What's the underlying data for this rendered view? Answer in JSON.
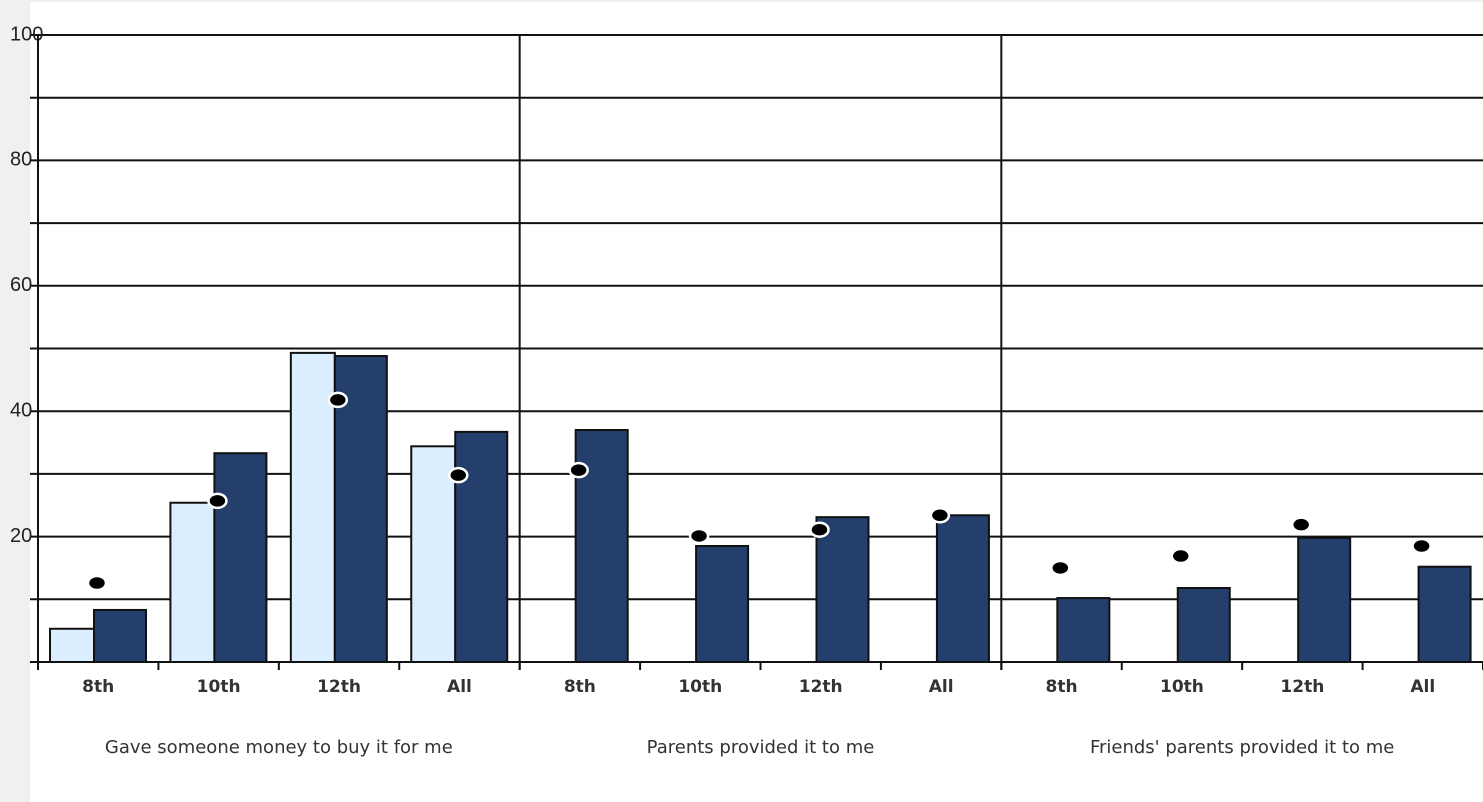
{
  "chart_data": {
    "type": "bar",
    "categories": [
      "8th",
      "10th",
      "12th",
      "All",
      "8th",
      "10th",
      "12th",
      "All",
      "8th",
      "10th",
      "12th",
      "All"
    ],
    "groups": [
      "Gave someone money to buy it for me",
      "Parents provided it to me",
      "Friends' parents provided it to me"
    ],
    "series": [
      {
        "color": "#dbeeff",
        "style": "bar",
        "values": [
          5.3,
          25.4,
          49.3,
          34.4,
          null,
          null,
          null,
          null,
          null,
          null,
          null,
          null
        ]
      },
      {
        "color": "#243f6b",
        "style": "bar",
        "values": [
          8.3,
          33.3,
          48.8,
          36.7,
          37.0,
          18.5,
          23.1,
          23.4,
          10.2,
          11.8,
          19.8,
          15.2
        ]
      },
      {
        "color": "#000000",
        "style": "dot",
        "values": [
          12.6,
          25.7,
          41.8,
          29.8,
          30.6,
          20.1,
          21.1,
          23.4,
          15.0,
          16.9,
          21.9,
          18.5
        ]
      }
    ],
    "ylim": [
      0,
      100
    ],
    "yticks": [
      20,
      40,
      60,
      80,
      100
    ],
    "grid": [
      0,
      10,
      20,
      30,
      40,
      50,
      60,
      70,
      80,
      90,
      100
    ]
  }
}
